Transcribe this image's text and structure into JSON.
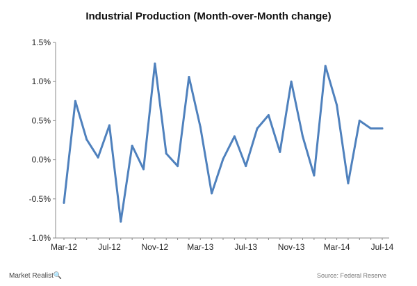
{
  "chart_data": {
    "type": "line",
    "title": "Industrial Production (Month-over-Month change)",
    "xlabel": "",
    "ylabel": "",
    "ylim": [
      -1.0,
      1.5
    ],
    "yticks": [
      "1.5%",
      "1.0%",
      "0.5%",
      "0.0%",
      "-0.5%",
      "-1.0%"
    ],
    "yticks_values": [
      1.5,
      1.0,
      0.5,
      0.0,
      -0.5,
      -1.0
    ],
    "xticks": [
      "Mar-12",
      "Jul-12",
      "Nov-12",
      "Mar-13",
      "Jul-13",
      "Nov-13",
      "Mar-14",
      "Jul-14"
    ],
    "categories": [
      "Mar-12",
      "Apr-12",
      "May-12",
      "Jun-12",
      "Jul-12",
      "Aug-12",
      "Sep-12",
      "Oct-12",
      "Nov-12",
      "Dec-12",
      "Jan-13",
      "Feb-13",
      "Mar-13",
      "Apr-13",
      "May-13",
      "Jun-13",
      "Jul-13",
      "Aug-13",
      "Sep-13",
      "Oct-13",
      "Nov-13",
      "Dec-13",
      "Jan-14",
      "Feb-14",
      "Mar-14",
      "Apr-14",
      "May-14",
      "Jun-14",
      "Jul-14"
    ],
    "series": [
      {
        "color": "#4f81bd",
        "values": [
          -0.55,
          0.75,
          0.26,
          0.03,
          0.44,
          -0.79,
          0.18,
          -0.12,
          1.23,
          0.08,
          -0.08,
          1.06,
          0.42,
          -0.43,
          0.01,
          0.3,
          -0.08,
          0.4,
          0.57,
          0.1,
          1.0,
          0.3,
          -0.2,
          1.2,
          0.7,
          -0.3,
          0.5,
          0.4,
          0.4
        ]
      }
    ],
    "grid": false,
    "legend": "none"
  },
  "branding": {
    "name": "Market Realist",
    "mark": "🔍"
  },
  "source": "Source: Federal Reserve"
}
